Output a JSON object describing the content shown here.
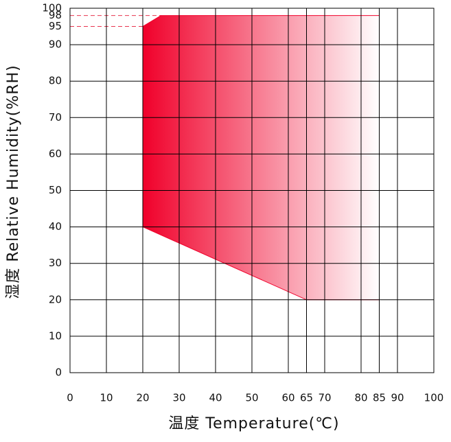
{
  "chart_data": {
    "type": "area",
    "xlabel": "温度 Temperature(℃)",
    "ylabel": "湿度 Relative Humidity(%RH)",
    "series": [
      {
        "x": [
          20,
          20,
          25,
          85,
          85,
          65
        ],
        "values": [
          40,
          95,
          98,
          98,
          20,
          20
        ],
        "color": "#f0002a"
      }
    ],
    "xlim": [
      0,
      100
    ],
    "xticks": [
      0,
      10,
      20,
      30,
      40,
      50,
      60,
      65,
      70,
      80,
      85,
      90,
      100
    ],
    "ylim": [
      0,
      100
    ],
    "yticks": [
      0,
      10,
      20,
      30,
      40,
      50,
      60,
      70,
      80,
      90,
      95,
      98,
      100
    ],
    "reference_lines": [
      95,
      98
    ],
    "reference_color": "#e8344e",
    "grid": true
  }
}
